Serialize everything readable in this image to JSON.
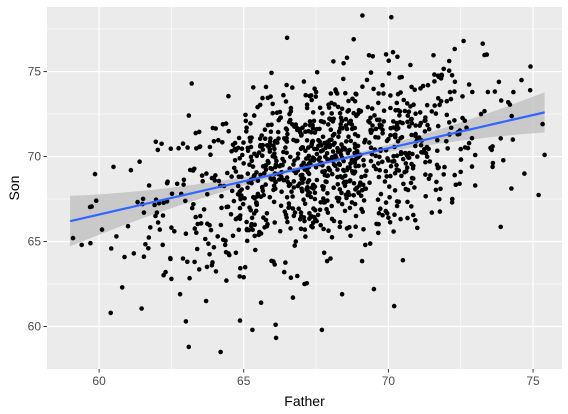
{
  "colors": {
    "panel_background": "#EBEBEB",
    "grid_major": "#FFFFFF",
    "points": "#000000",
    "fit_line": "#3366FF",
    "confidence_band": "#BDBDBD",
    "tick_text": "#4D4D4D"
  },
  "chart_data": {
    "type": "scatter",
    "title": "",
    "xlabel": "Father",
    "ylabel": "Son",
    "xlim": [
      58.2,
      76.0
    ],
    "ylim": [
      57.5,
      78.8
    ],
    "x_ticks": [
      60,
      65,
      70,
      75
    ],
    "y_ticks": [
      60,
      65,
      70,
      75
    ],
    "grid": true,
    "smooth": {
      "method": "linear",
      "x_start": 59.0,
      "y_start": 66.2,
      "x_end": 75.4,
      "y_end": 72.6,
      "confidence_band": true
    },
    "points_count_estimate": 1078,
    "points": [
      [
        59.1,
        65.2
      ],
      [
        59.4,
        64.8
      ],
      [
        59.7,
        64.9
      ],
      [
        59.9,
        67.4
      ],
      [
        60.1,
        65.7
      ],
      [
        60.4,
        60.8
      ],
      [
        60.6,
        65.3
      ],
      [
        60.8,
        62.3
      ],
      [
        61.0,
        65.9
      ],
      [
        61.1,
        69.2
      ],
      [
        61.2,
        64.3
      ],
      [
        61.5,
        67.2
      ],
      [
        61.7,
        64.6
      ],
      [
        62.0,
        66.7
      ],
      [
        62.2,
        64.8
      ],
      [
        62.3,
        63.2
      ],
      [
        62.5,
        62.8
      ],
      [
        62.6,
        65.6
      ],
      [
        62.8,
        61.9
      ],
      [
        62.9,
        64.0
      ],
      [
        63.0,
        60.3
      ],
      [
        63.1,
        58.8
      ],
      [
        63.2,
        74.3
      ],
      [
        63.3,
        63.8
      ],
      [
        63.5,
        66.5
      ],
      [
        63.7,
        61.5
      ],
      [
        63.9,
        63.6
      ],
      [
        64.0,
        68.6
      ],
      [
        64.1,
        65.3
      ],
      [
        64.2,
        58.5
      ],
      [
        64.4,
        62.7
      ],
      [
        64.5,
        64.2
      ],
      [
        64.7,
        70.8
      ],
      [
        64.8,
        66.4
      ],
      [
        65.0,
        62.9
      ],
      [
        65.1,
        71.7
      ],
      [
        65.2,
        67.0
      ],
      [
        65.3,
        59.8
      ],
      [
        65.4,
        64.5
      ],
      [
        65.6,
        61.4
      ],
      [
        65.8,
        65.9
      ],
      [
        66.0,
        73.1
      ],
      [
        66.1,
        60.1
      ],
      [
        66.3,
        68.8
      ],
      [
        66.4,
        63.2
      ],
      [
        66.5,
        67.6
      ],
      [
        66.7,
        61.7
      ],
      [
        66.8,
        65.0
      ],
      [
        67.0,
        71.3
      ],
      [
        67.1,
        62.5
      ],
      [
        67.2,
        69.9
      ],
      [
        67.4,
        66.1
      ],
      [
        67.5,
        73.8
      ],
      [
        67.7,
        59.8
      ],
      [
        67.8,
        67.3
      ],
      [
        68.0,
        64.0
      ],
      [
        68.1,
        75.6
      ],
      [
        68.3,
        70.3
      ],
      [
        68.4,
        61.9
      ],
      [
        68.5,
        66.8
      ],
      [
        68.7,
        72.1
      ],
      [
        68.8,
        76.9
      ],
      [
        69.0,
        68.3
      ],
      [
        69.1,
        78.3
      ],
      [
        69.2,
        64.8
      ],
      [
        69.4,
        71.4
      ],
      [
        69.5,
        62.2
      ],
      [
        69.7,
        69.2
      ],
      [
        69.8,
        74.2
      ],
      [
        70.0,
        66.4
      ],
      [
        70.1,
        78.2
      ],
      [
        70.2,
        61.2
      ],
      [
        70.3,
        71.8
      ],
      [
        70.5,
        63.9
      ],
      [
        70.6,
        69.6
      ],
      [
        70.8,
        74.1
      ],
      [
        71.0,
        65.8
      ],
      [
        71.1,
        72.6
      ],
      [
        71.3,
        70.2
      ],
      [
        71.5,
        66.7
      ],
      [
        71.6,
        73.0
      ],
      [
        71.8,
        68.1
      ],
      [
        72.0,
        70.9
      ],
      [
        72.2,
        67.3
      ],
      [
        72.3,
        74.4
      ],
      [
        72.5,
        69.1
      ],
      [
        72.6,
        76.8
      ],
      [
        72.7,
        71.7
      ],
      [
        72.9,
        73.8
      ],
      [
        73.0,
        68.3
      ],
      [
        73.2,
        72.5
      ],
      [
        73.4,
        76.0
      ],
      [
        73.6,
        70.6
      ],
      [
        73.9,
        73.3
      ],
      [
        74.3,
        71.0
      ],
      [
        74.6,
        74.5
      ],
      [
        74.7,
        69.0
      ],
      [
        74.9,
        73.9
      ],
      [
        75.4,
        70.1
      ]
    ]
  }
}
